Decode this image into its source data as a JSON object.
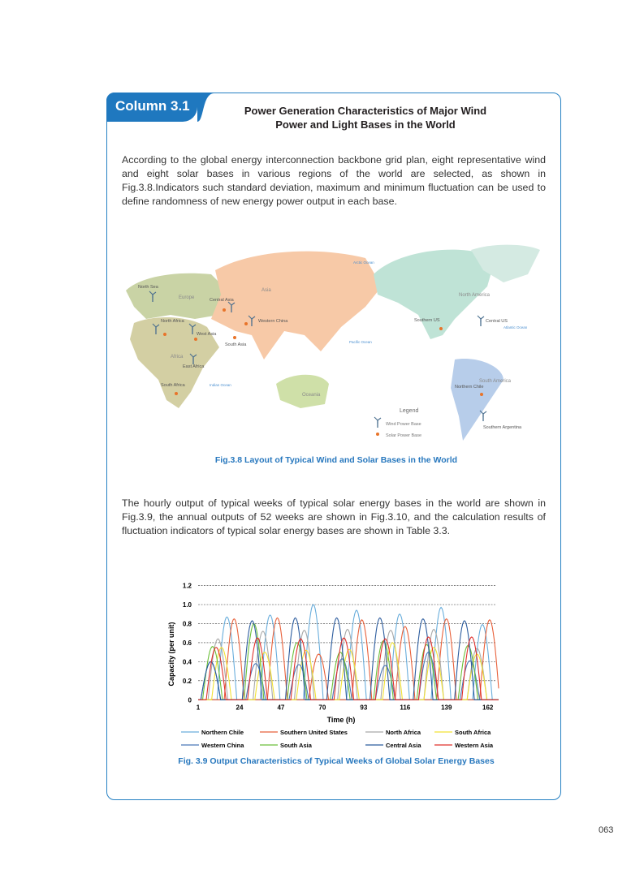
{
  "header": {
    "column_label": "Column 3.1",
    "title_line1": "Power Generation Characteristics of Major Wind",
    "title_line2": "Power and Light Bases in the World"
  },
  "intro_paragraph": "According to the global energy interconnection backbone grid plan, eight representative wind and eight solar bases in various regions of the world are selected, as shown in Fig.3.8.Indicators such standard deviation, maximum and minimum fluctuation can be used to define randomness of new energy power output in each base.",
  "map": {
    "caption": "Fig.3.8    Layout of Typical Wind and Solar Bases in the World",
    "colors": {
      "europe_africa": "#c9d3a5",
      "africa": "#d3cfa3",
      "asia": "#f7c9a7",
      "oceania": "#cfe0a8",
      "north_america": "#bfe3d6",
      "south_america": "#b7cdea",
      "ocean_label": "#4a8fd0",
      "solar": "#e8742a",
      "wind": "#4b6f8f"
    },
    "region_labels": [
      "Europe",
      "Asia",
      "Africa",
      "Oceania",
      "North America",
      "South America"
    ],
    "ocean_labels": [
      "Arctic Ocean",
      "Pacific Ocean",
      "Atlantic Ocean",
      "Indian Ocean"
    ],
    "wind_bases": [
      "North Sea",
      "North Africa",
      "West Asia",
      "Central Asia",
      "Western China",
      "East Africa",
      "Central US",
      "Southern Argentina"
    ],
    "solar_bases": [
      "North Africa",
      "West Asia",
      "Central Asia",
      "Western China",
      "South Asia",
      "South Africa",
      "Southern US",
      "Northern Chile"
    ],
    "legend": {
      "title": "Legend",
      "wind": "Wind Power Base",
      "solar": "Solar Power Base"
    }
  },
  "second_paragraph": "The hourly output of typical weeks of typical solar energy bases in the world are shown in Fig.3.9, the annual outputs of 52 weeks are shown in Fig.3.10, and the calculation results of fluctuation indicators of typical solar energy bases are shown in Table 3.3.",
  "chart_data": {
    "type": "line",
    "xlabel": "Time (h)",
    "ylabel": "Capacity (per unit)",
    "xlim": [
      1,
      168
    ],
    "ylim": [
      0,
      1.2
    ],
    "x_ticks": [
      "1",
      "24",
      "47",
      "70",
      "93",
      "116",
      "139",
      "162"
    ],
    "y_ticks": [
      "0",
      "0.2",
      "0.4",
      "0.6",
      "0.8",
      "1.0",
      "1.2"
    ],
    "grid": "horizontal dashed",
    "legend_position": "bottom",
    "caption": "Fig. 3.9    Output Characteristics of Typical Weeks of Global Solar Energy Bases",
    "series": [
      {
        "name": "Northern Chile",
        "color": "#6aaedc",
        "peak_hours": [
          17,
          41,
          65,
          89,
          113,
          136,
          159
        ],
        "peak_values": [
          0.87,
          0.89,
          1.0,
          0.94,
          0.9,
          0.97,
          0.79
        ]
      },
      {
        "name": "Southern United States",
        "color": "#e8603a",
        "peak_hours": [
          21,
          45,
          68,
          92,
          116,
          139,
          163
        ],
        "peak_values": [
          0.85,
          0.86,
          0.48,
          0.84,
          0.77,
          0.85,
          0.84
        ]
      },
      {
        "name": "North Africa",
        "color": "#a9a9a9",
        "peak_hours": [
          12,
          37,
          60,
          84,
          108,
          132,
          156
        ],
        "peak_values": [
          0.64,
          0.72,
          0.73,
          0.74,
          0.73,
          0.74,
          0.54
        ]
      },
      {
        "name": "South Africa",
        "color": "#f2e236",
        "peak_hours": [
          14,
          38,
          61,
          85,
          109,
          132,
          156
        ],
        "peak_values": [
          0.55,
          0.5,
          0.52,
          0.53,
          0.6,
          0.55,
          0.48
        ]
      },
      {
        "name": "Western China",
        "color": "#4a78b8",
        "peak_hours": [
          8,
          33,
          57,
          81,
          105,
          129,
          152
        ],
        "peak_values": [
          0.4,
          0.38,
          0.37,
          0.43,
          0.36,
          0.5,
          0.41
        ]
      },
      {
        "name": "South Asia",
        "color": "#6cbf3a",
        "peak_hours": [
          9,
          32,
          56,
          80,
          104,
          128,
          151
        ],
        "peak_values": [
          0.56,
          0.8,
          0.6,
          0.5,
          0.62,
          0.58,
          0.57
        ]
      },
      {
        "name": "Central Asia",
        "color": "#2c5c9e",
        "peak_hours": [
          8,
          31,
          55,
          78,
          102,
          126,
          149
        ],
        "peak_values": [
          0.4,
          0.83,
          0.86,
          0.86,
          0.86,
          0.85,
          0.83
        ]
      },
      {
        "name": "Western Asia",
        "color": "#e0302c",
        "peak_hours": [
          11,
          34,
          58,
          82,
          105,
          129,
          153
        ],
        "peak_values": [
          0.55,
          0.65,
          0.64,
          0.65,
          0.64,
          0.66,
          0.66
        ]
      }
    ]
  },
  "page_number": "063"
}
